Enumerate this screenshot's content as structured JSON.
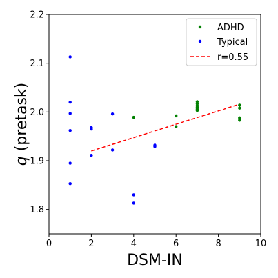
{
  "chart_data": {
    "type": "scatter",
    "xlabel": "DSM-IN",
    "ylabel_main": "q",
    "ylabel_paren": "(pretask)",
    "xlim": [
      0,
      10
    ],
    "ylim": [
      1.75,
      2.2
    ],
    "xticks": [
      0,
      2,
      4,
      6,
      8,
      10
    ],
    "yticks": [
      1.8,
      1.9,
      2.0,
      2.1,
      2.2
    ],
    "xtick_labels": [
      "0",
      "2",
      "4",
      "6",
      "8",
      "10"
    ],
    "ytick_labels": [
      "1.8",
      "1.9",
      "2.0",
      "2.1",
      "2.2"
    ],
    "grid": false,
    "legend_position": "top-right",
    "series": [
      {
        "name": "ADHD",
        "color": "#008000",
        "marker": "dot",
        "points": [
          {
            "x": 4,
            "y": 1.989
          },
          {
            "x": 6,
            "y": 1.992
          },
          {
            "x": 6,
            "y": 1.97
          },
          {
            "x": 7,
            "y": 2.021
          },
          {
            "x": 7,
            "y": 2.017
          },
          {
            "x": 7,
            "y": 2.013
          },
          {
            "x": 7,
            "y": 2.01
          },
          {
            "x": 7,
            "y": 2.006
          },
          {
            "x": 7,
            "y": 2.003
          },
          {
            "x": 9,
            "y": 2.014
          },
          {
            "x": 9,
            "y": 2.008
          },
          {
            "x": 9,
            "y": 1.988
          },
          {
            "x": 9,
            "y": 1.983
          }
        ]
      },
      {
        "name": "Typical",
        "color": "#0000ff",
        "marker": "dot",
        "points": [
          {
            "x": 1,
            "y": 2.113
          },
          {
            "x": 1,
            "y": 2.02
          },
          {
            "x": 1,
            "y": 1.997
          },
          {
            "x": 1,
            "y": 1.962
          },
          {
            "x": 1,
            "y": 1.895
          },
          {
            "x": 1,
            "y": 1.853
          },
          {
            "x": 2,
            "y": 1.968
          },
          {
            "x": 2,
            "y": 1.965
          },
          {
            "x": 2,
            "y": 1.911
          },
          {
            "x": 3,
            "y": 1.996
          },
          {
            "x": 3,
            "y": 1.922
          },
          {
            "x": 4,
            "y": 1.83
          },
          {
            "x": 4,
            "y": 1.813
          },
          {
            "x": 5,
            "y": 1.932
          },
          {
            "x": 5,
            "y": 1.929
          }
        ]
      }
    ],
    "fit_line": {
      "name": "r=0.55",
      "color": "#ff0000",
      "style": "dashed",
      "x": [
        2,
        9
      ],
      "y": [
        1.92,
        2.016
      ]
    }
  }
}
